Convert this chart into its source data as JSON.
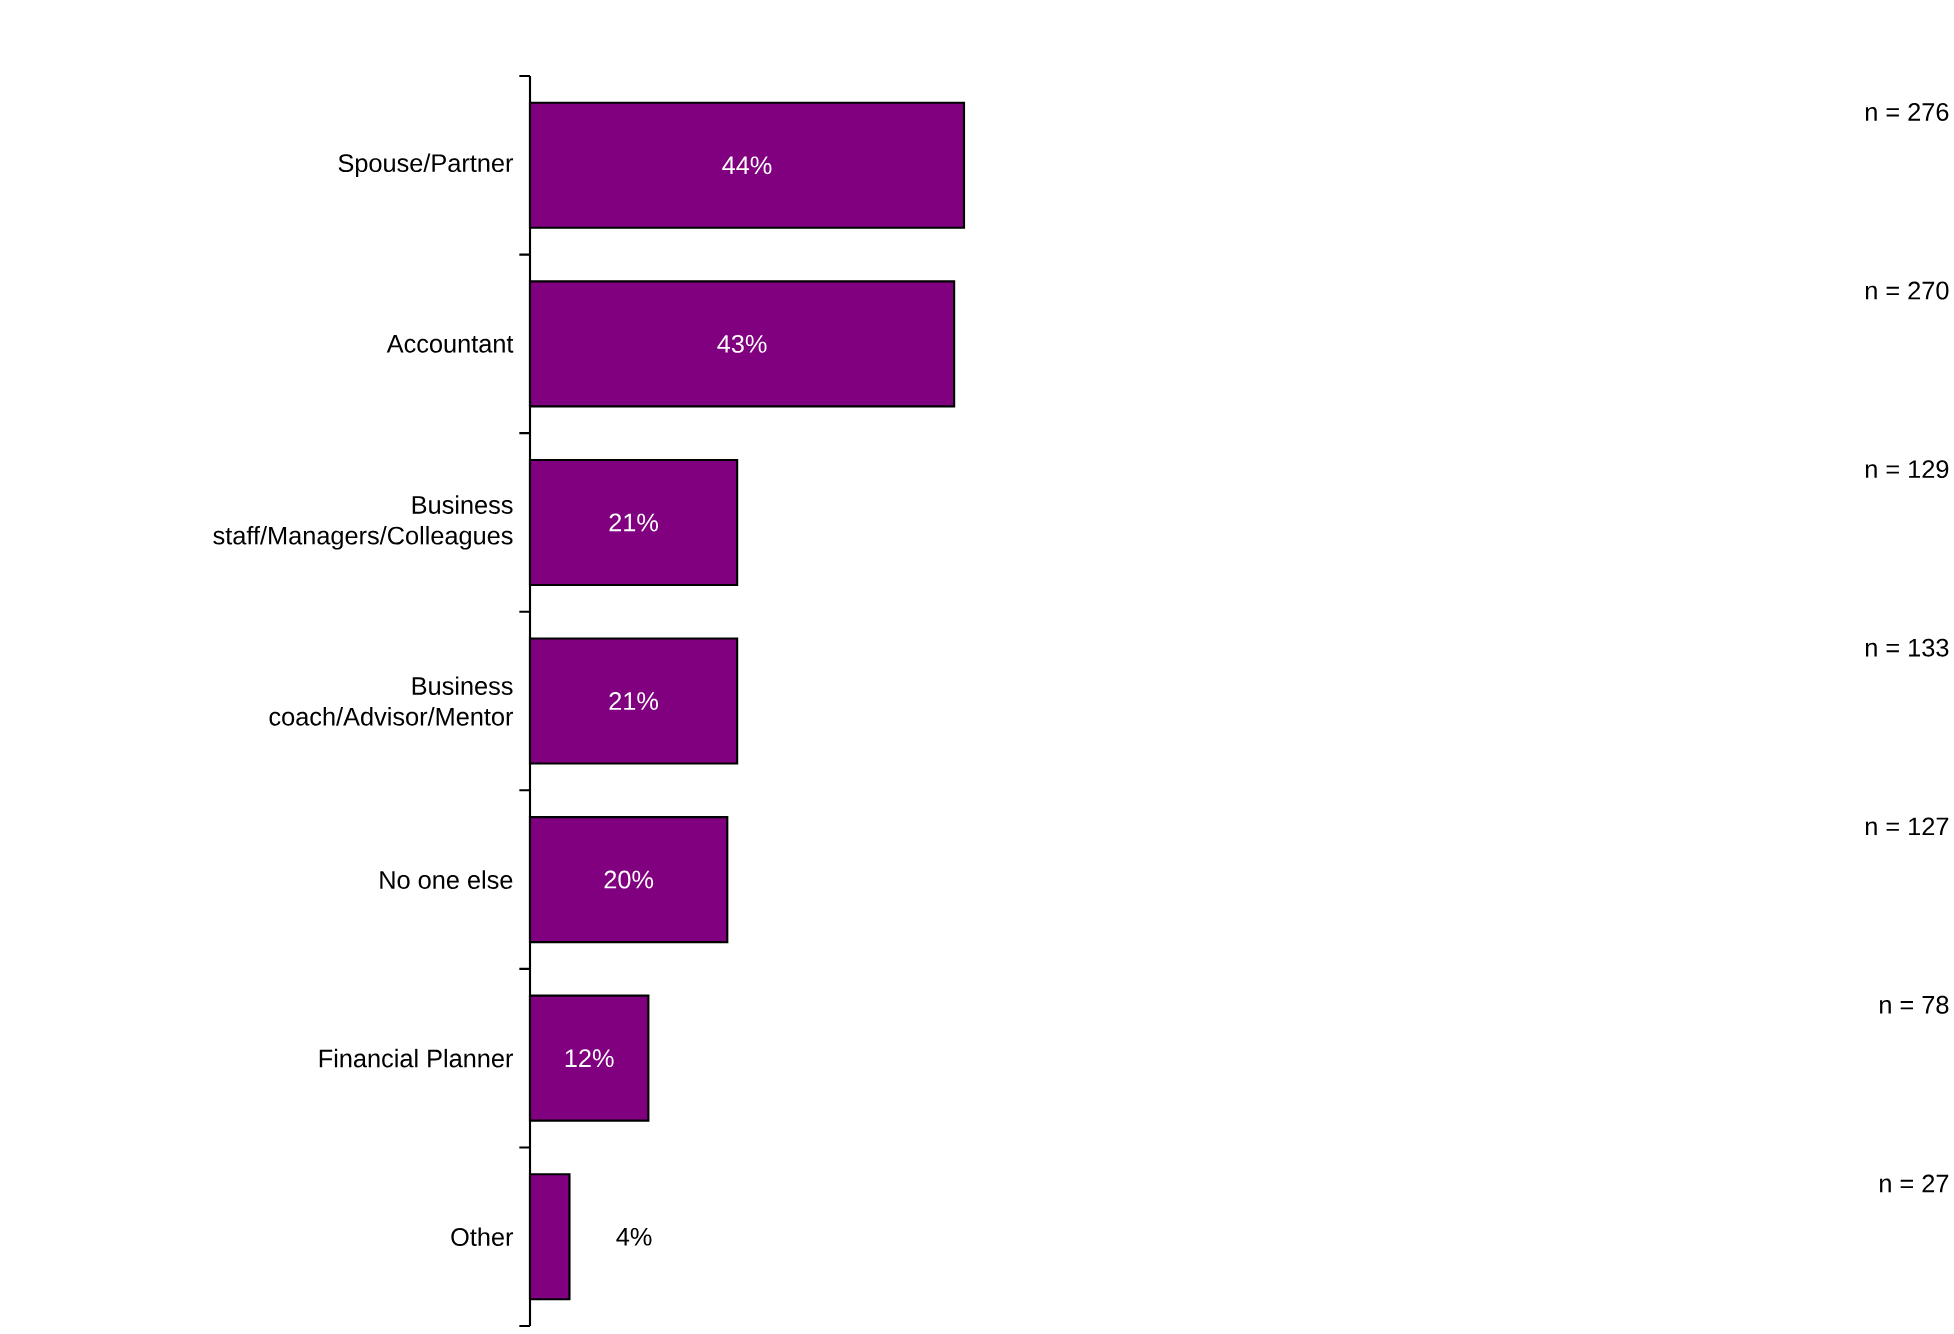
{
  "chart_data": {
    "type": "bar",
    "orientation": "horizontal",
    "categories": [
      "Spouse/Partner",
      "Accountant",
      "Business staff/Managers/Colleagues",
      "Business coach/Advisor/Mentor",
      "No one else",
      "Financial Planner",
      "Other"
    ],
    "values": [
      44,
      43,
      21,
      21,
      20,
      12,
      4
    ],
    "value_labels": [
      "44%",
      "43%",
      "21%",
      "21%",
      "20%",
      "12%",
      "4%"
    ],
    "color": "#800080",
    "annotations": [
      "n = 276",
      "n = 270",
      "n = 129",
      "n = 133",
      "n = 127",
      "n = 78",
      "n = 27"
    ]
  }
}
